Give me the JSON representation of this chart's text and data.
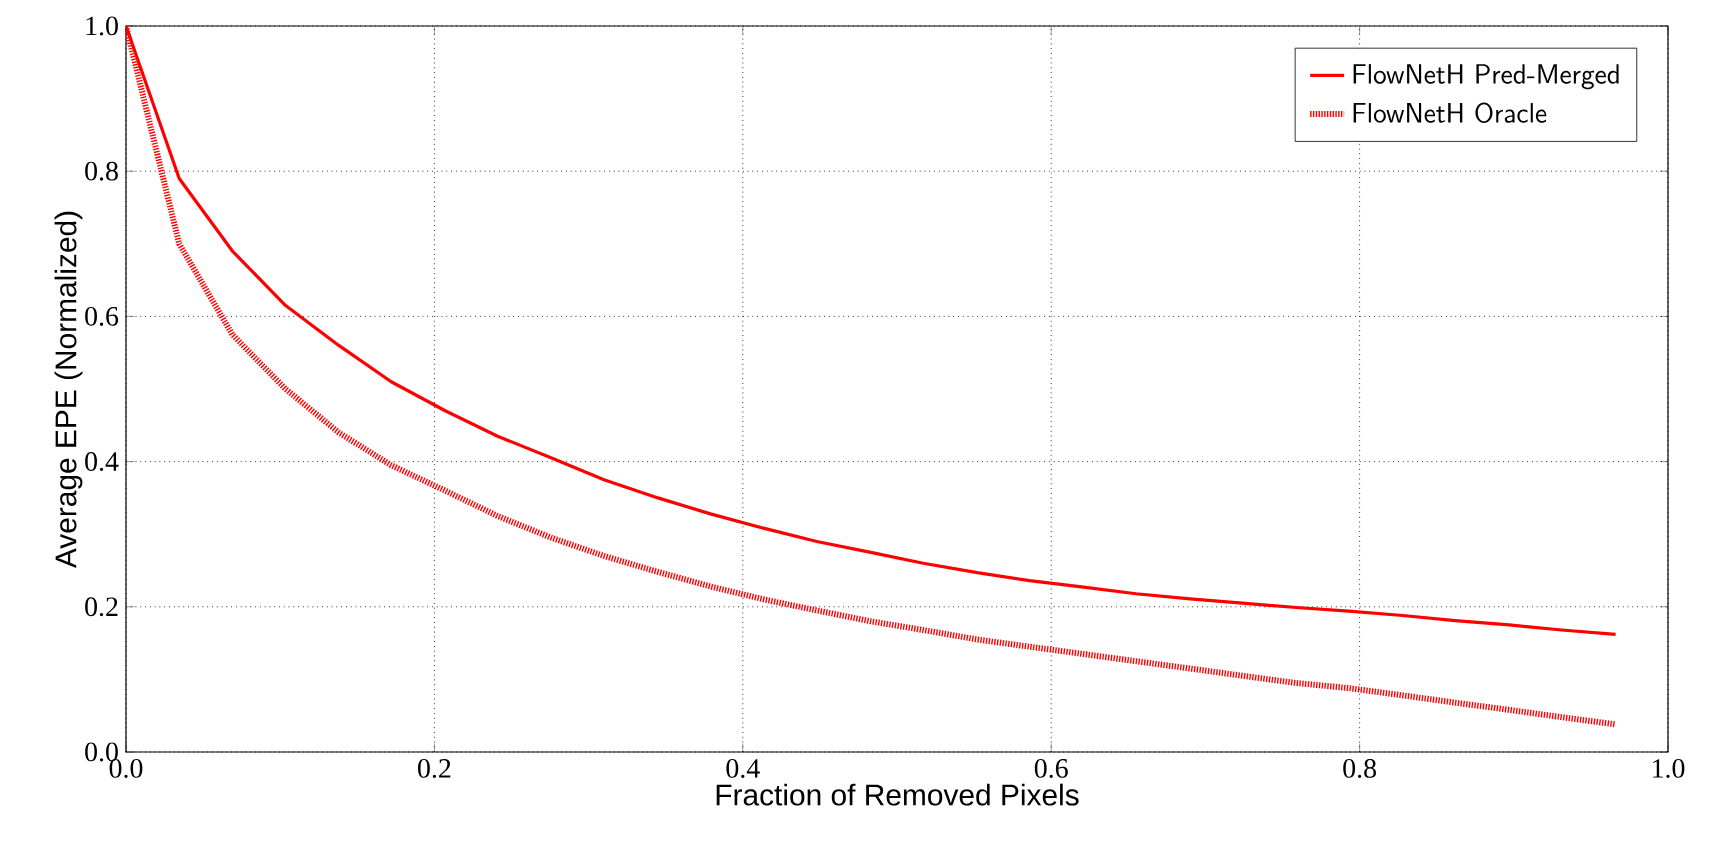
{
  "chart_data": {
    "type": "line",
    "xlabel": "Fraction of Removed Pixels",
    "ylabel": "Average EPE (Normalized)",
    "x": [
      0,
      0.0345,
      0.069,
      0.1035,
      0.138,
      0.172,
      0.207,
      0.241,
      0.276,
      0.31,
      0.345,
      0.379,
      0.414,
      0.448,
      0.483,
      0.517,
      0.552,
      0.586,
      0.621,
      0.655,
      0.69,
      0.724,
      0.759,
      0.793,
      0.828,
      0.862,
      0.897,
      0.931,
      0.966
    ],
    "series": [
      {
        "name": "FlowNetH Pred-Merged",
        "color": "#ff0000",
        "line_style": "solid",
        "values": [
          1.0,
          0.79,
          0.69,
          0.615,
          0.56,
          0.51,
          0.47,
          0.435,
          0.405,
          0.375,
          0.35,
          0.328,
          0.308,
          0.29,
          0.275,
          0.26,
          0.247,
          0.236,
          0.227,
          0.218,
          0.211,
          0.205,
          0.199,
          0.194,
          0.188,
          0.181,
          0.175,
          0.168,
          0.162
        ]
      },
      {
        "name": "FlowNetH Oracle",
        "color": "#ff0000",
        "line_style": "dotted",
        "values": [
          1.0,
          0.7,
          0.575,
          0.5,
          0.44,
          0.395,
          0.36,
          0.325,
          0.295,
          0.27,
          0.248,
          0.228,
          0.21,
          0.195,
          0.18,
          0.168,
          0.155,
          0.145,
          0.135,
          0.125,
          0.115,
          0.105,
          0.095,
          0.088,
          0.078,
          0.068,
          0.058,
          0.048,
          0.038
        ]
      }
    ],
    "xlim": [
      0,
      1
    ],
    "ylim": [
      0,
      1
    ],
    "xticks": [
      {
        "value": 0,
        "label": "0.0"
      },
      {
        "value": 0.2,
        "label": "0.2"
      },
      {
        "value": 0.4,
        "label": "0.4"
      },
      {
        "value": 0.6,
        "label": "0.6"
      },
      {
        "value": 0.8,
        "label": "0.8"
      },
      {
        "value": 1,
        "label": "1.0"
      }
    ],
    "yticks": [
      {
        "value": 0,
        "label": "0.0"
      },
      {
        "value": 0.2,
        "label": "0.2"
      },
      {
        "value": 0.4,
        "label": "0.4"
      },
      {
        "value": 0.6,
        "label": "0.6"
      },
      {
        "value": 0.8,
        "label": "0.8"
      },
      {
        "value": 1,
        "label": "1.0"
      }
    ],
    "grid": true,
    "legend": "top right",
    "marker": "none"
  }
}
